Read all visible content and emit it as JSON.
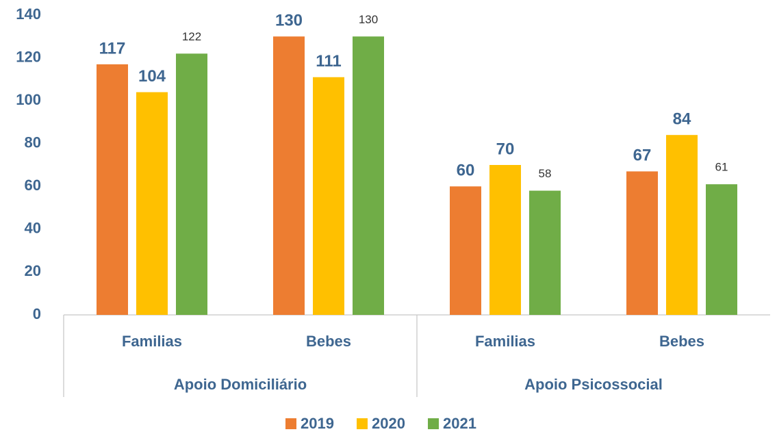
{
  "chart_data": {
    "type": "bar",
    "groups": [
      {
        "name": "Apoio Domiciliário",
        "categories": [
          "Familias",
          "Bebes"
        ]
      },
      {
        "name": "Apoio Psicossocial",
        "categories": [
          "Familias",
          "Bebes"
        ]
      }
    ],
    "series": [
      {
        "name": "2019",
        "color": "#ed7d31",
        "values": [
          117,
          130,
          60,
          67
        ]
      },
      {
        "name": "2020",
        "color": "#ffc000",
        "values": [
          104,
          111,
          70,
          84
        ]
      },
      {
        "name": "2021",
        "color": "#70ad47",
        "values": [
          122,
          130,
          58,
          61
        ]
      }
    ],
    "ylim": [
      0,
      140
    ],
    "yticks": [
      0,
      20,
      40,
      60,
      80,
      100,
      120,
      140
    ],
    "grid": false,
    "legend": "bottom"
  }
}
